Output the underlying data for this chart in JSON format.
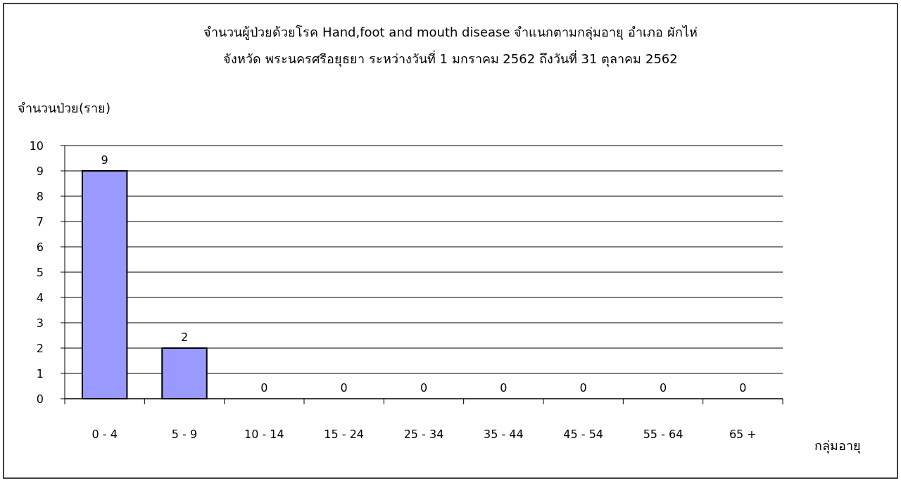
{
  "chart_data": {
    "type": "bar",
    "title": "จำนวนผู้ป่วยด้วยโรค Hand,foot and mouth disease  จำแนกตามกลุ่มอายุ อำเภอ ผักไห่",
    "subtitle": "จังหวัด พระนครศรีอยุธยา  ระหว่างวันที่  1 มกราคม 2562  ถึงวันที่  31 ตุลาคม 2562",
    "ylabel": "จำนวนป่วย(ราย)",
    "xlabel": "กลุ่มอายุ",
    "categories": [
      "0 - 4",
      "5 - 9",
      "10 - 14",
      "15 - 24",
      "25 - 34",
      "35 - 44",
      "45 - 54",
      "55 - 64",
      "65 +"
    ],
    "values": [
      9,
      2,
      0,
      0,
      0,
      0,
      0,
      0,
      0
    ],
    "color": "#9999ff",
    "ylim": [
      0,
      10
    ],
    "yticks": [
      0,
      1,
      2,
      3,
      4,
      5,
      6,
      7,
      8,
      9,
      10
    ],
    "grid": "y",
    "data_labels": true
  }
}
